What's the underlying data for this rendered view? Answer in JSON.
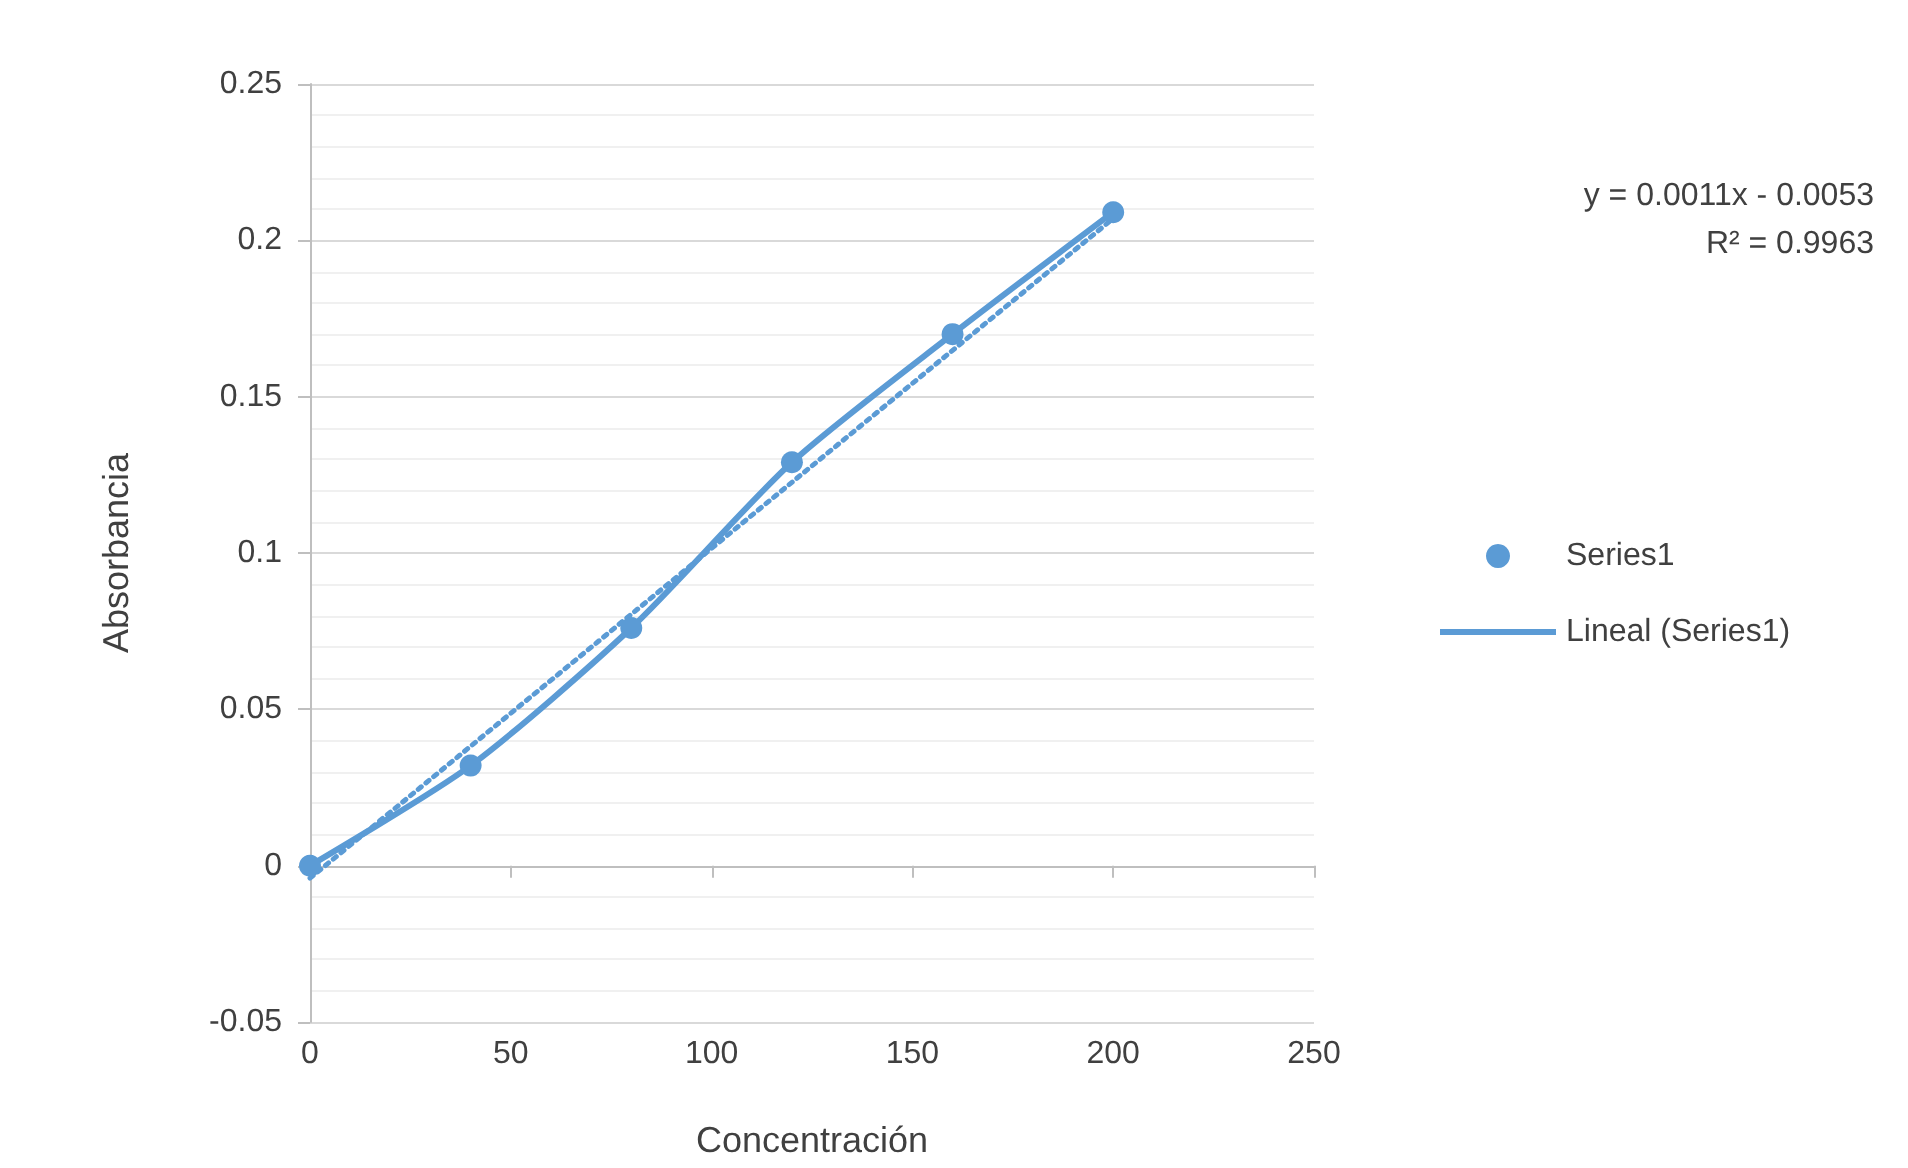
{
  "chart_data": {
    "type": "line",
    "xlabel": "Concentración",
    "ylabel": "Absorbancia",
    "x": [
      0,
      40,
      80,
      120,
      160,
      200
    ],
    "series": [
      {
        "name": "Series1",
        "color": "#5b9bd5",
        "values": [
          0,
          0.032,
          0.076,
          0.129,
          0.17,
          0.209
        ],
        "marker": "circle",
        "line_style": "solid"
      },
      {
        "name": "Lineal (Series1)",
        "color": "#5b9bd5",
        "x": [
          0,
          200
        ],
        "values": [
          -0.004,
          0.207
        ],
        "marker": "none",
        "line_style": "dotted"
      }
    ],
    "xlim": [
      0,
      250
    ],
    "xticks": [
      0,
      50,
      100,
      150,
      200,
      250
    ],
    "ylim": [
      -0.05,
      0.25
    ],
    "yticks": [
      -0.05,
      0,
      0.05,
      0.1,
      0.15,
      0.2,
      0.25
    ],
    "grid": "y",
    "legend": "right",
    "annotations": [
      "y = 0.0011x - 0.0053\nR² = 0.9963"
    ]
  }
}
